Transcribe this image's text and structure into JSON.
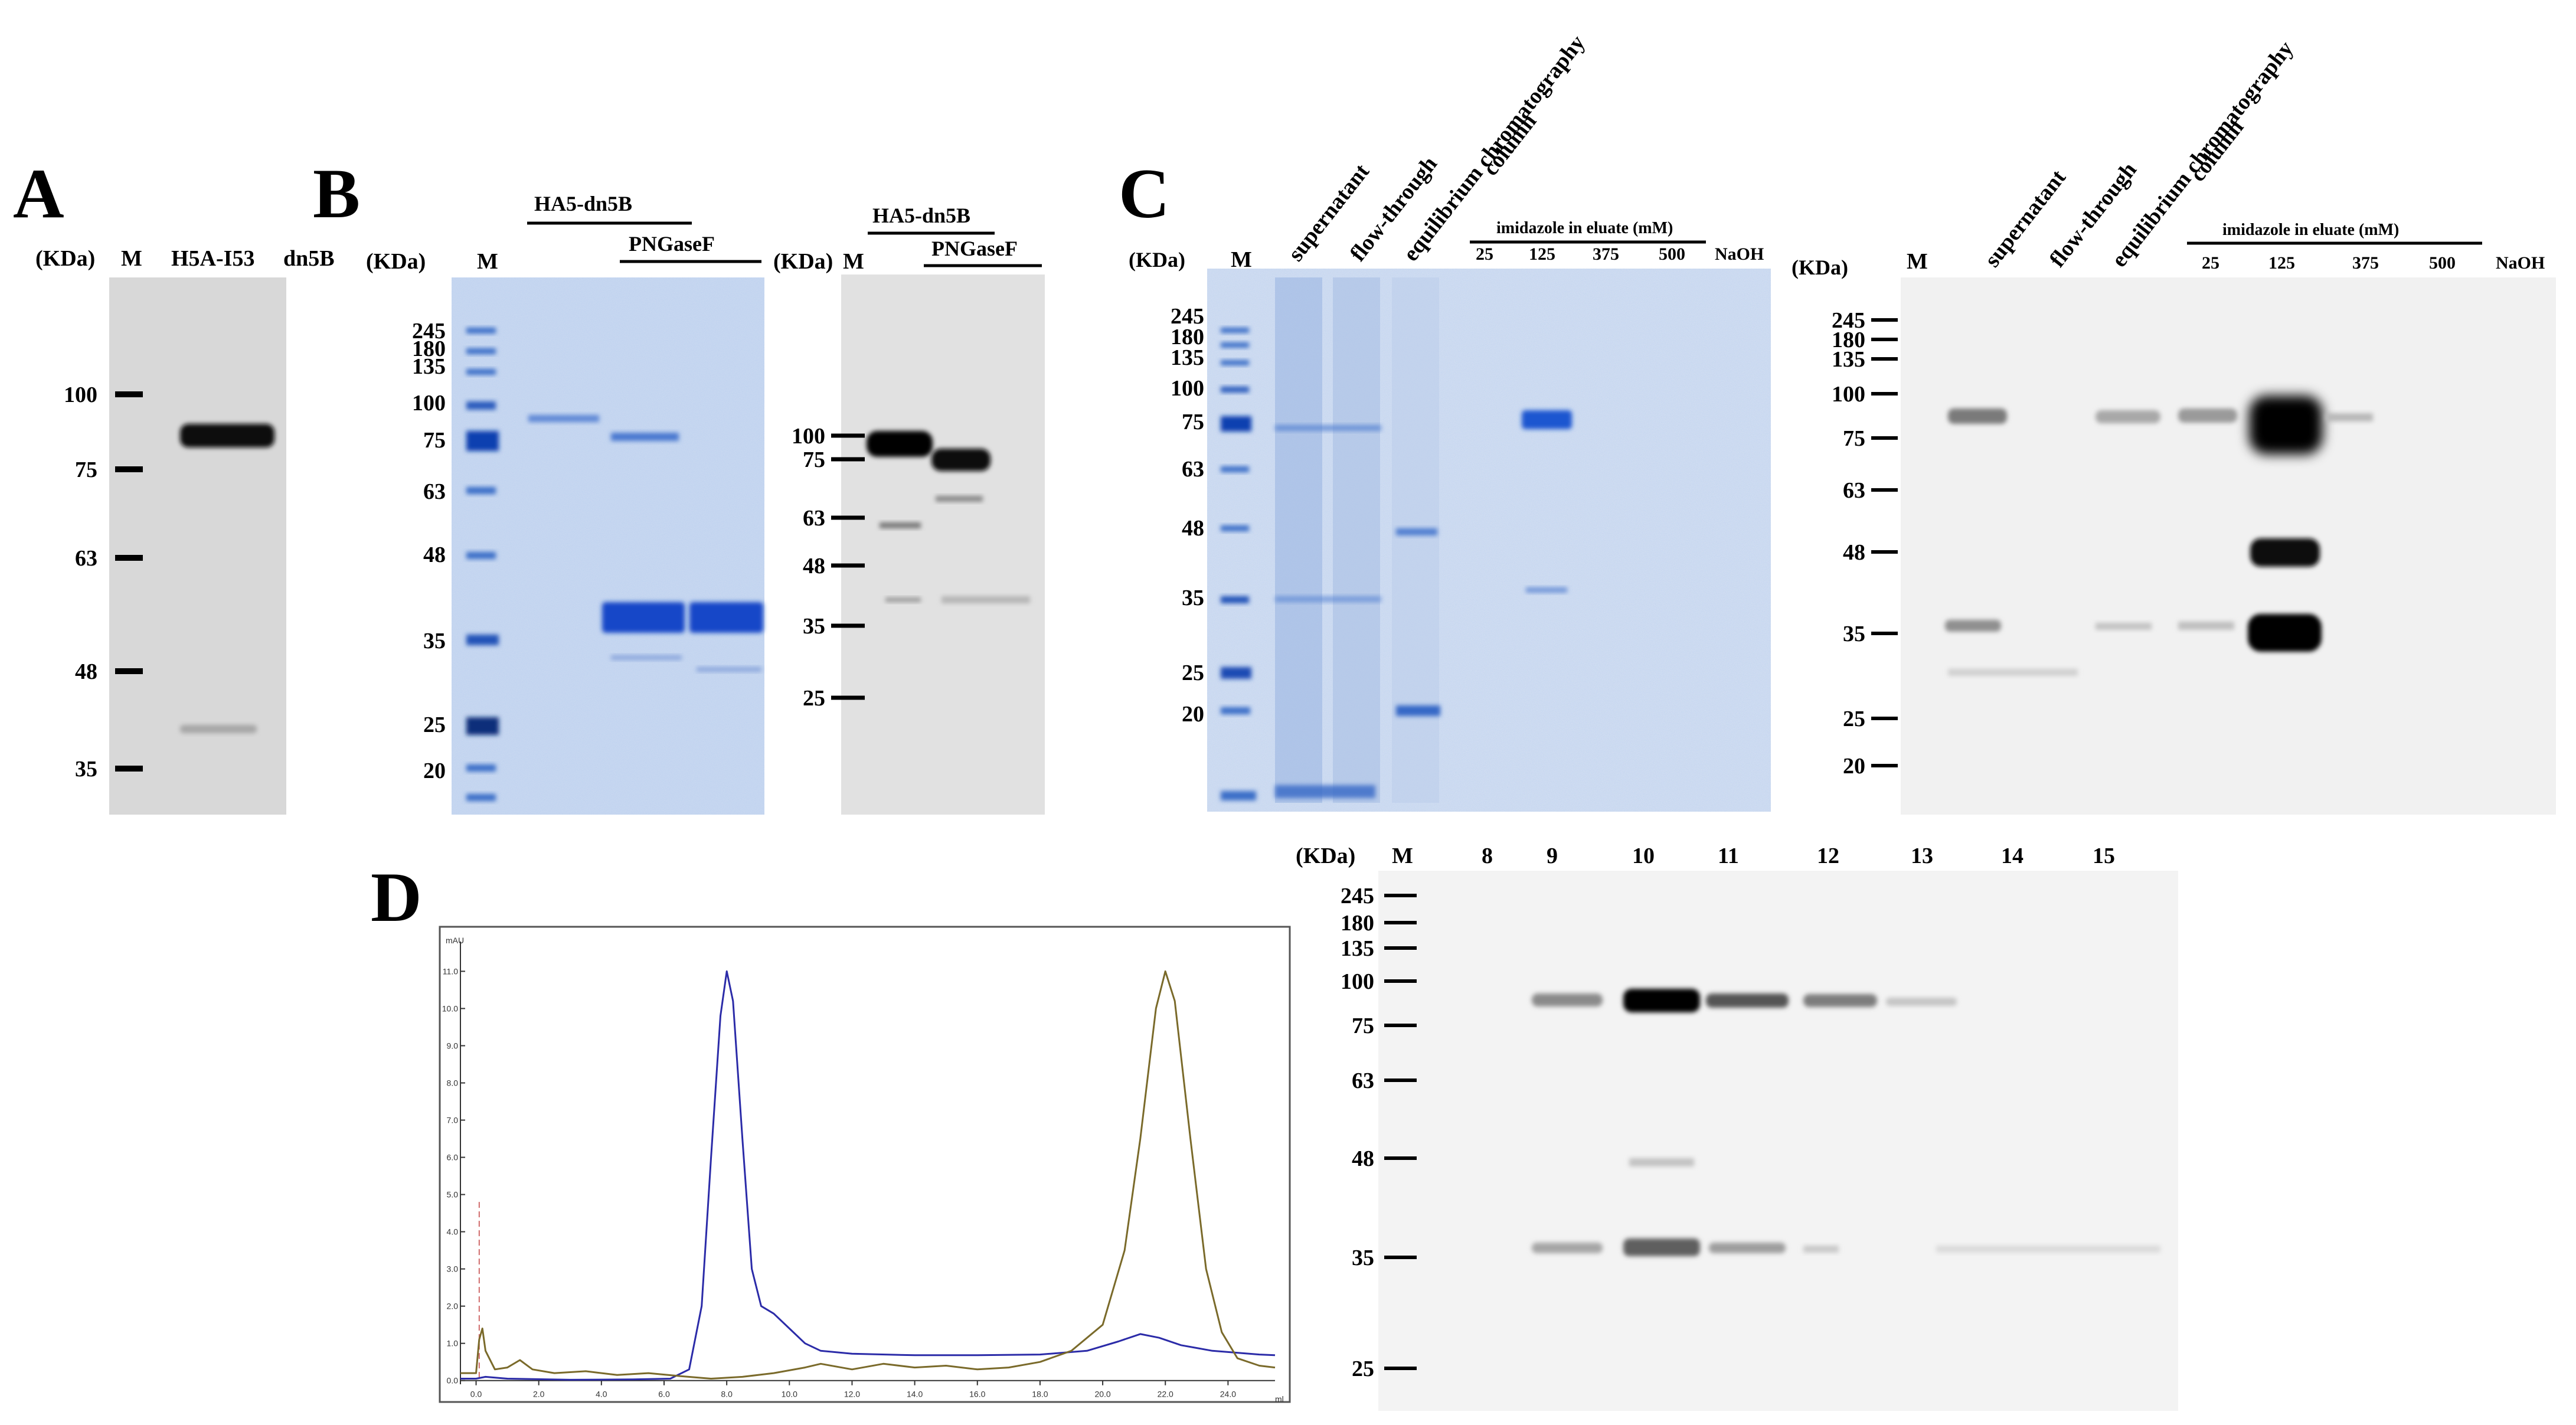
{
  "panels": {
    "A": {
      "label": "A",
      "kda": "(KDa)",
      "lanes": [
        "M",
        "H5A-I53",
        "dn5B"
      ],
      "markers": [
        "100",
        "75",
        "63",
        "48",
        "35"
      ]
    },
    "B_gel": {
      "label": "B",
      "kda": "(KDa)",
      "lane_m": "M",
      "group1": "HA5-dn5B",
      "group2": "PNGaseF",
      "markers": [
        "245",
        "180",
        "135",
        "100",
        "75",
        "63",
        "48",
        "35",
        "25",
        "20"
      ]
    },
    "B_blot": {
      "kda": "(KDa)",
      "lane_m": "M",
      "group1": "HA5-dn5B",
      "group2": "PNGaseF",
      "markers": [
        "100",
        "75",
        "63",
        "48",
        "35",
        "25"
      ]
    },
    "C_gel": {
      "label": "C",
      "kda": "(KDa)",
      "lane_m": "M",
      "rotated": [
        "supernatant",
        "flow-through",
        "equilibrium chromatography",
        "column"
      ],
      "imidazole": "imidazole in eluate (mM)",
      "conc": [
        "25",
        "125",
        "375",
        "500",
        "NaOH"
      ],
      "markers": [
        "245",
        "180",
        "135",
        "100",
        "75",
        "63",
        "48",
        "35",
        "25",
        "20"
      ]
    },
    "C_blot": {
      "kda": "(KDa)",
      "lane_m": "M",
      "rotated": [
        "supernatant",
        "flow-through",
        "equilibrium chromatography",
        "column"
      ],
      "imidazole": "imidazole in eluate (mM)",
      "conc": [
        "25",
        "125",
        "375",
        "500",
        "NaOH"
      ],
      "markers": [
        "245",
        "180",
        "135",
        "100",
        "75",
        "63",
        "48",
        "35",
        "25",
        "20"
      ]
    },
    "D_chrom": {
      "label": "D",
      "yunit": "mAU",
      "xunit": "ml"
    },
    "D_blot": {
      "kda": "(KDa)",
      "lanes": [
        "M",
        "8",
        "9",
        "10",
        "11",
        "12",
        "13",
        "14",
        "15"
      ],
      "markers": [
        "245",
        "180",
        "135",
        "100",
        "75",
        "63",
        "48",
        "35",
        "25"
      ]
    }
  },
  "chart_data": {
    "type": "line",
    "yunit": "mAU",
    "xunit": "ml",
    "x_ticks": [
      "0.0",
      "2.0",
      "4.0",
      "6.0",
      "8.0",
      "10.0",
      "12.0",
      "14.0",
      "16.0",
      "18.0",
      "20.0",
      "22.0",
      "24.0"
    ],
    "y_ticks": [
      "0.0",
      "1.0",
      "2.0",
      "3.0",
      "4.0",
      "5.0",
      "6.0",
      "7.0",
      "8.0",
      "9.0",
      "10.0",
      "11.0"
    ],
    "xlim": [
      -0.5,
      25.5
    ],
    "ylim": [
      -0.1,
      11.8
    ],
    "injection_marker_x": 0.1,
    "series": [
      {
        "color": "#2b2ba8",
        "points": [
          [
            -0.5,
            0.05
          ],
          [
            0.0,
            0.05
          ],
          [
            0.3,
            0.1
          ],
          [
            1.0,
            0.05
          ],
          [
            3.0,
            0.02
          ],
          [
            5.0,
            0.03
          ],
          [
            6.2,
            0.05
          ],
          [
            6.8,
            0.3
          ],
          [
            7.2,
            2.0
          ],
          [
            7.5,
            6.0
          ],
          [
            7.8,
            9.8
          ],
          [
            8.0,
            11.0
          ],
          [
            8.2,
            10.2
          ],
          [
            8.5,
            6.5
          ],
          [
            8.8,
            3.0
          ],
          [
            9.1,
            2.0
          ],
          [
            9.5,
            1.8
          ],
          [
            10.0,
            1.4
          ],
          [
            10.5,
            1.0
          ],
          [
            11.0,
            0.8
          ],
          [
            12.0,
            0.72
          ],
          [
            14.0,
            0.68
          ],
          [
            16.0,
            0.68
          ],
          [
            18.0,
            0.7
          ],
          [
            19.5,
            0.8
          ],
          [
            20.5,
            1.05
          ],
          [
            21.2,
            1.25
          ],
          [
            21.8,
            1.15
          ],
          [
            22.5,
            0.95
          ],
          [
            23.5,
            0.8
          ],
          [
            25.0,
            0.7
          ],
          [
            25.5,
            0.68
          ]
        ]
      },
      {
        "color": "#7a6a2a",
        "points": [
          [
            -0.5,
            0.2
          ],
          [
            0.0,
            0.2
          ],
          [
            0.1,
            1.1
          ],
          [
            0.2,
            1.4
          ],
          [
            0.3,
            0.8
          ],
          [
            0.6,
            0.3
          ],
          [
            1.0,
            0.35
          ],
          [
            1.4,
            0.55
          ],
          [
            1.8,
            0.3
          ],
          [
            2.5,
            0.2
          ],
          [
            3.5,
            0.25
          ],
          [
            4.5,
            0.15
          ],
          [
            5.5,
            0.2
          ],
          [
            6.5,
            0.12
          ],
          [
            7.5,
            0.05
          ],
          [
            8.5,
            0.1
          ],
          [
            9.5,
            0.2
          ],
          [
            10.5,
            0.35
          ],
          [
            11.0,
            0.45
          ],
          [
            12.0,
            0.3
          ],
          [
            13.0,
            0.45
          ],
          [
            14.0,
            0.35
          ],
          [
            15.0,
            0.4
          ],
          [
            16.0,
            0.3
          ],
          [
            17.0,
            0.35
          ],
          [
            18.0,
            0.5
          ],
          [
            19.0,
            0.8
          ],
          [
            20.0,
            1.5
          ],
          [
            20.7,
            3.5
          ],
          [
            21.2,
            6.5
          ],
          [
            21.7,
            10.0
          ],
          [
            22.0,
            11.0
          ],
          [
            22.3,
            10.2
          ],
          [
            22.8,
            6.5
          ],
          [
            23.3,
            3.0
          ],
          [
            23.8,
            1.3
          ],
          [
            24.3,
            0.6
          ],
          [
            25.0,
            0.4
          ],
          [
            25.5,
            0.35
          ]
        ]
      }
    ]
  }
}
